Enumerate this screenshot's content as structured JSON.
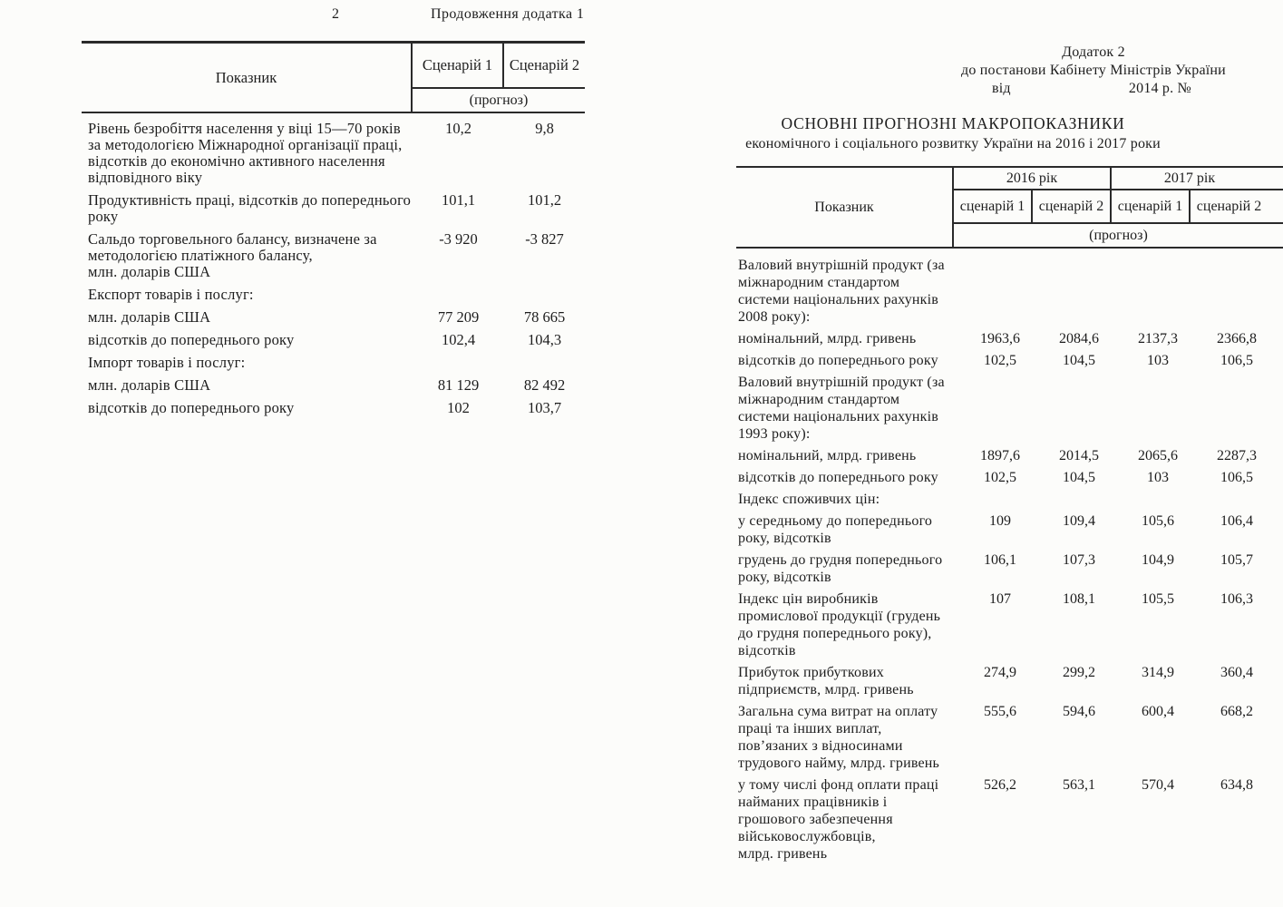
{
  "colors": {
    "paper": "#fcfcfa",
    "ink": "#1d1d1d",
    "rule_line": "#2a2a2a"
  },
  "page_left": {
    "page_number": "2",
    "continuation_note": "Продовження додатка 1",
    "table": {
      "indicator_header": "Показник",
      "scenario1_header": "Сценарій 1",
      "scenario2_header": "Сценарій 2",
      "forecast_note": "(прогноз)",
      "rows": [
        {
          "label": "Рівень безробіття населення у віці 15—70 років\nза методологією Міжнародної організації праці,\nвідсотків до економічно активного населення\nвідповідного віку",
          "s1": "10,2",
          "s2": "9,8"
        },
        {
          "label": "Продуктивність праці, відсотків до попереднього\nроку",
          "s1": "101,1",
          "s2": "101,2"
        },
        {
          "label": "Сальдо торговельного балансу, визначене за\nметодологією платіжного балансу,\nмлн. доларів США",
          "s1": "-3 920",
          "s2": "-3 827"
        },
        {
          "label": "Експорт товарів і послуг:",
          "s1": "",
          "s2": ""
        },
        {
          "label": "млн. доларів США",
          "s1": "77 209",
          "s2": "78 665"
        },
        {
          "label": "відсотків до попереднього року",
          "s1": "102,4",
          "s2": "104,3"
        },
        {
          "label": "Імпорт товарів і послуг:",
          "s1": "",
          "s2": ""
        },
        {
          "label": "млн. доларів США",
          "s1": "81 129",
          "s2": "82 492"
        },
        {
          "label": "відсотків до попереднього року",
          "s1": "102",
          "s2": "103,7"
        }
      ]
    }
  },
  "page_right": {
    "annex": {
      "line1": "Додаток 2",
      "line2": "до постанови Кабінету Міністрів України",
      "from_label": "від",
      "date_label": "2014 р. №"
    },
    "title": "ОСНОВНІ ПРОГНОЗНІ МАКРОПОКАЗНИКИ",
    "subtitle": "економічного і соціального розвитку України на 2016 і 2017 роки",
    "table": {
      "indicator_header": "Показник",
      "year1_header": "2016 рік",
      "year2_header": "2017 рік",
      "scenario1_header": "сценарій 1",
      "scenario2_header": "сценарій 2",
      "forecast_note": "(прогноз)",
      "rows": [
        {
          "label": "Валовий внутрішній продукт (за\nміжнародним стандартом\nсистеми національних рахунків\n2008 року):",
          "y16s1": "",
          "y16s2": "",
          "y17s1": "",
          "y17s2": ""
        },
        {
          "label": "номінальний, млрд. гривень",
          "y16s1": "1963,6",
          "y16s2": "2084,6",
          "y17s1": "2137,3",
          "y17s2": "2366,8"
        },
        {
          "label": "відсотків до попереднього року",
          "y16s1": "102,5",
          "y16s2": "104,5",
          "y17s1": "103",
          "y17s2": "106,5"
        },
        {
          "label": "Валовий внутрішній продукт (за\nміжнародним стандартом\nсистеми національних рахунків\n1993 року):",
          "y16s1": "",
          "y16s2": "",
          "y17s1": "",
          "y17s2": ""
        },
        {
          "label": "номінальний, млрд. гривень",
          "y16s1": "1897,6",
          "y16s2": "2014,5",
          "y17s1": "2065,6",
          "y17s2": "2287,3"
        },
        {
          "label": "відсотків до попереднього року",
          "y16s1": "102,5",
          "y16s2": "104,5",
          "y17s1": "103",
          "y17s2": "106,5"
        },
        {
          "label": "Індекс споживчих цін:",
          "y16s1": "",
          "y16s2": "",
          "y17s1": "",
          "y17s2": ""
        },
        {
          "label": "у середньому до попереднього\nроку, відсотків",
          "y16s1": "109",
          "y16s2": "109,4",
          "y17s1": "105,6",
          "y17s2": "106,4"
        },
        {
          "label": "грудень до грудня попереднього\nроку, відсотків",
          "y16s1": "106,1",
          "y16s2": "107,3",
          "y17s1": "104,9",
          "y17s2": "105,7"
        },
        {
          "label": "Індекс цін виробників\nпромислової продукції (грудень\nдо грудня попереднього року),\nвідсотків",
          "y16s1": "107",
          "y16s2": "108,1",
          "y17s1": "105,5",
          "y17s2": "106,3"
        },
        {
          "label": "Прибуток прибуткових\nпідприємств, млрд. гривень",
          "y16s1": "274,9",
          "y16s2": "299,2",
          "y17s1": "314,9",
          "y17s2": "360,4"
        },
        {
          "label": "Загальна сума витрат на оплату\nпраці та інших виплат,\nпов’язаних з відносинами\nтрудового найму, млрд. гривень",
          "y16s1": "555,6",
          "y16s2": "594,6",
          "y17s1": "600,4",
          "y17s2": "668,2"
        },
        {
          "label": "у тому числі фонд оплати праці\nнайманих працівників і\nгрошового забезпечення\nвійськовослужбовців,\nмлрд. гривень",
          "y16s1": "526,2",
          "y16s2": "563,1",
          "y17s1": "570,4",
          "y17s2": "634,8"
        }
      ]
    }
  }
}
